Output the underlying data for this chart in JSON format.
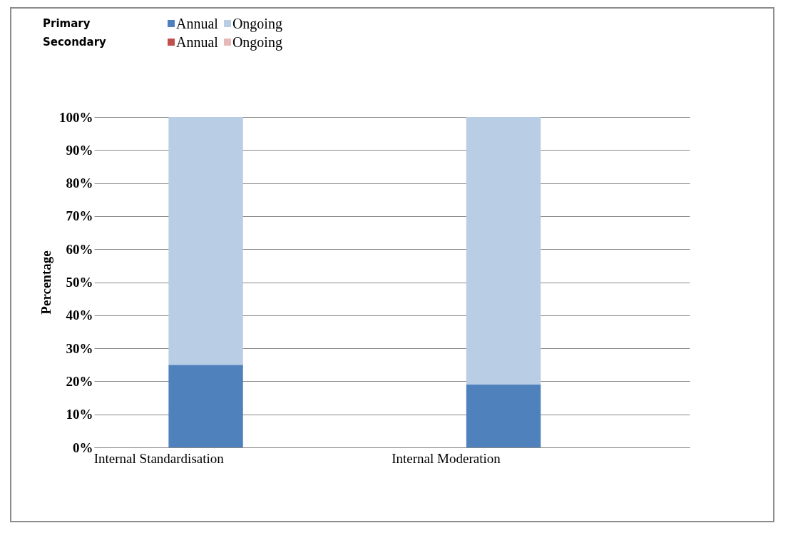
{
  "chart_data": {
    "type": "bar",
    "stacked": true,
    "ylabel": "Percentage",
    "categories": [
      "Internal Standardisation",
      "Internal Moderation"
    ],
    "series": [
      {
        "name": "Annual",
        "color": "#4f81bd",
        "values": [
          25,
          19
        ]
      },
      {
        "name": "Ongoing",
        "color": "#b9cde5",
        "values": [
          75,
          81
        ]
      },
      {
        "name": "Annual",
        "color": "#c0504d",
        "values": [
          null,
          null
        ]
      },
      {
        "name": "Ongoing",
        "color": "#e6b9b8",
        "values": [
          null,
          null
        ]
      }
    ],
    "legend_title": [
      "Primary",
      "Secondary"
    ],
    "legend": "top left",
    "ylim": [
      0,
      100
    ],
    "yticks": [
      {
        "value": 0,
        "label": "0%"
      },
      {
        "value": 10,
        "label": "10%"
      },
      {
        "value": 20,
        "label": "20%"
      },
      {
        "value": 30,
        "label": "30%"
      },
      {
        "value": 40,
        "label": "40%"
      },
      {
        "value": 50,
        "label": "50%"
      },
      {
        "value": 60,
        "label": "60%"
      },
      {
        "value": 70,
        "label": "70%"
      },
      {
        "value": 80,
        "label": "80%"
      },
      {
        "value": 90,
        "label": "90%"
      },
      {
        "value": 100,
        "label": "100%"
      }
    ],
    "grid": "y"
  }
}
